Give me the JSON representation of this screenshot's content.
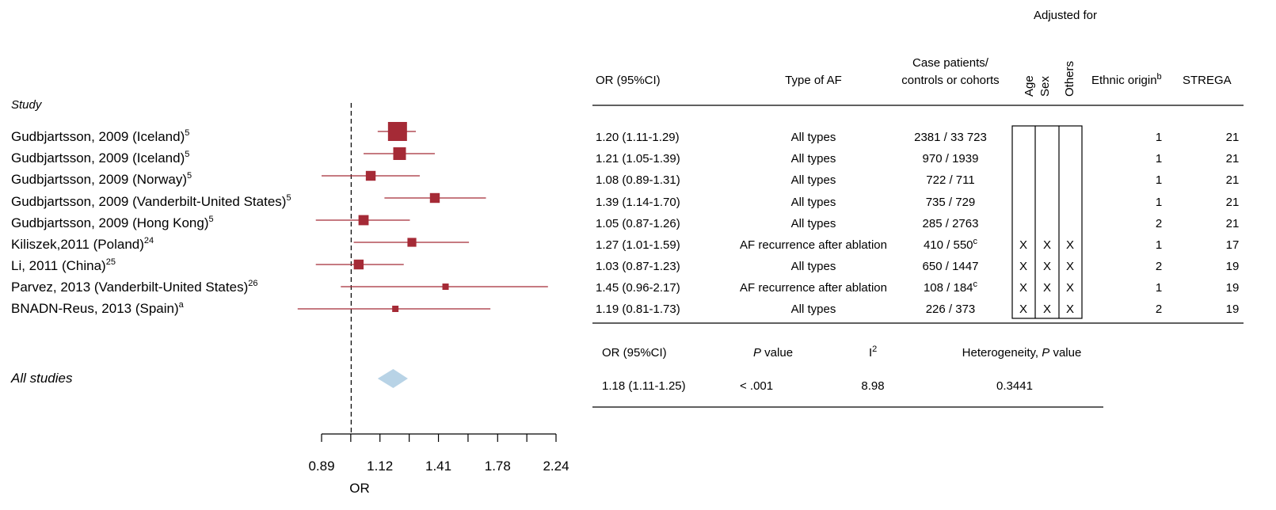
{
  "colors": {
    "marker": "#a52a36",
    "pooled": "#b8d3e6",
    "line": "#000000"
  },
  "plot": {
    "study_header": "Study",
    "xlabel": "OR",
    "pooled_label": "All studies"
  },
  "chart_data": {
    "type": "forest",
    "x_scale": "log",
    "xlim": [
      0.89,
      2.24
    ],
    "xticks": [
      0.89,
      1.12,
      1.41,
      1.78,
      2.24
    ],
    "xtick_labels": [
      "0.89",
      "1.12",
      "1.41",
      "1.78",
      "2.24"
    ],
    "reference_line": 1.0,
    "studies": [
      {
        "label": "Gudbjartsson, 2009 (Iceland)",
        "sup": "5",
        "or": 1.2,
        "lo": 1.11,
        "hi": 1.29,
        "or_text": "1.20 (1.11-1.29)",
        "type": "All types",
        "cases": "2381 / 33 723",
        "cases_sup": "",
        "age": "",
        "sex": "",
        "others": "",
        "ethnic": "1",
        "strega": "21",
        "weight": 1.0
      },
      {
        "label": "Gudbjartsson, 2009 (Iceland)",
        "sup": "5",
        "or": 1.21,
        "lo": 1.05,
        "hi": 1.39,
        "or_text": "1.21 (1.05-1.39)",
        "type": "All types",
        "cases": "970 / 1939",
        "cases_sup": "",
        "age": "",
        "sex": "",
        "others": "",
        "ethnic": "1",
        "strega": "21",
        "weight": 0.6
      },
      {
        "label": "Gudbjartsson, 2009 (Norway)",
        "sup": "5",
        "or": 1.08,
        "lo": 0.89,
        "hi": 1.31,
        "or_text": "1.08 (0.89-1.31)",
        "type": "All types",
        "cases": "722 / 711",
        "cases_sup": "",
        "age": "",
        "sex": "",
        "others": "",
        "ethnic": "1",
        "strega": "21",
        "weight": 0.42
      },
      {
        "label": "Gudbjartsson, 2009 (Vanderbilt-United States)",
        "sup": "5",
        "or": 1.39,
        "lo": 1.14,
        "hi": 1.7,
        "or_text": "1.39 (1.14-1.70)",
        "type": "All types",
        "cases": "735 / 729",
        "cases_sup": "",
        "age": "",
        "sex": "",
        "others": "",
        "ethnic": "1",
        "strega": "21",
        "weight": 0.42
      },
      {
        "label": "Gudbjartsson, 2009 (Hong Kong)",
        "sup": "5",
        "or": 1.05,
        "lo": 0.87,
        "hi": 1.26,
        "or_text": "1.05 (0.87-1.26)",
        "type": "All types",
        "cases": "285 / 2763",
        "cases_sup": "",
        "age": "",
        "sex": "",
        "others": "",
        "ethnic": "2",
        "strega": "21",
        "weight": 0.44
      },
      {
        "label": "Kiliszek,2011 (Poland)",
        "sup": "24",
        "or": 1.27,
        "lo": 1.01,
        "hi": 1.59,
        "or_text": "1.27 (1.01-1.59)",
        "type": "AF recurrence after ablation",
        "cases": "410 / 550",
        "cases_sup": "c",
        "age": "X",
        "sex": "X",
        "others": "X",
        "ethnic": "1",
        "strega": "17",
        "weight": 0.36
      },
      {
        "label": "Li, 2011 (China)",
        "sup": "25",
        "or": 1.03,
        "lo": 0.87,
        "hi": 1.23,
        "or_text": "1.03 (0.87-1.23)",
        "type": "All types",
        "cases": "650 / 1447",
        "cases_sup": "",
        "age": "X",
        "sex": "X",
        "others": "X",
        "ethnic": "2",
        "strega": "19",
        "weight": 0.42
      },
      {
        "label": "Parvez, 2013 (Vanderbilt-United States)",
        "sup": "26",
        "or": 1.45,
        "lo": 0.96,
        "hi": 2.17,
        "or_text": "1.45 (0.96-2.17)",
        "type": "AF recurrence after ablation",
        "cases": "108 / 184",
        "cases_sup": "c",
        "age": "X",
        "sex": "X",
        "others": "X",
        "ethnic": "1",
        "strega": "19",
        "weight": 0.2
      },
      {
        "label": "BNADN-Reus, 2013 (Spain)",
        "sup": "a",
        "or": 1.19,
        "lo": 0.81,
        "hi": 1.73,
        "or_text": "1.19 (0.81-1.73)",
        "type": "All types",
        "cases": "226 / 373",
        "cases_sup": "",
        "age": "X",
        "sex": "X",
        "others": "X",
        "ethnic": "2",
        "strega": "19",
        "weight": 0.2
      }
    ],
    "pooled": {
      "or": 1.18,
      "lo": 1.11,
      "hi": 1.25
    }
  },
  "table": {
    "adjusted_for": "Adjusted for",
    "headers": {
      "or": "OR (95%CI)",
      "type": "Type of AF",
      "cases_line1": "Case patients/",
      "cases_line2": "controls or cohorts",
      "age": "Age",
      "sex": "Sex",
      "others": "Others",
      "ethnic": "Ethnic origin",
      "ethnic_sup": "b",
      "strega": "STREGA"
    }
  },
  "summary": {
    "headers": {
      "or": "OR (95%CI)",
      "p": "P",
      "p_rest": " value",
      "i2": "I",
      "i2_sup": "2",
      "het": "Heterogeneity, ",
      "het_p": "P",
      "het_rest": " value"
    },
    "values": {
      "or": "1.18 (1.11-1.25)",
      "p": "< .001",
      "i2": "8.98",
      "het": "0.3441"
    }
  }
}
